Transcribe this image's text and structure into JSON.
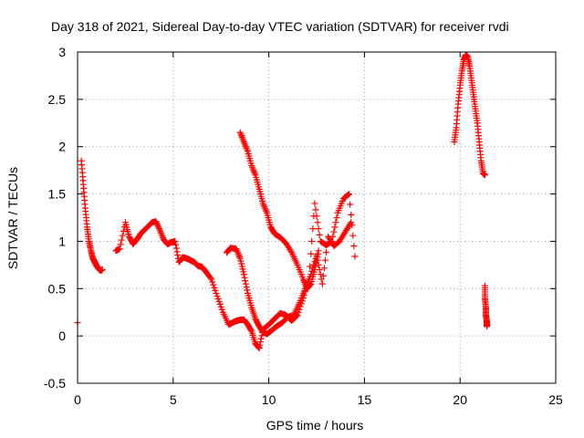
{
  "chart_data": {
    "type": "scatter",
    "title": "Day 318 of 2021, Sidereal Day-to-day VTEC variation (SDTVAR) for receiver rvdi",
    "xlabel": "GPS time / hours",
    "ylabel": "SDTVAR / TECUs",
    "xlim": [
      0,
      25
    ],
    "ylim": [
      -0.5,
      3
    ],
    "xticks": [
      0,
      5,
      10,
      15,
      20,
      25
    ],
    "yticks": [
      -0.5,
      0,
      0.5,
      1,
      1.5,
      2,
      2.5,
      3
    ],
    "xtick_labels": [
      "0",
      "5",
      "10",
      "15",
      "20",
      "25"
    ],
    "ytick_labels": [
      "-0.5",
      "0",
      "0.5",
      "1",
      "1.5",
      "2",
      "2.5",
      "3"
    ],
    "grid": true,
    "marker": "+",
    "color": "#ff0000",
    "series": [
      {
        "name": "seg-0",
        "x": [
          0.0
        ],
        "y": [
          0.14
        ]
      },
      {
        "name": "seg-1",
        "x": [
          0.2,
          0.3,
          0.4,
          0.5,
          0.6,
          0.7,
          0.8,
          0.9,
          1.0,
          1.1,
          1.2,
          1.3
        ],
        "y": [
          1.85,
          1.6,
          1.35,
          1.15,
          1.0,
          0.9,
          0.82,
          0.78,
          0.74,
          0.71,
          0.69,
          0.7
        ]
      },
      {
        "name": "seg-2",
        "x": [
          2.0,
          2.2,
          2.5,
          2.7,
          2.9,
          3.1,
          3.3,
          3.6,
          3.9,
          4.1,
          4.3,
          4.5,
          4.7,
          4.9,
          5.1,
          5.3,
          5.5,
          5.7,
          5.9,
          6.1,
          6.3,
          6.5,
          6.7,
          7.0,
          7.3,
          7.6,
          7.9,
          8.1,
          8.3,
          8.5,
          8.7,
          8.9,
          9.1,
          9.3,
          9.5,
          9.7,
          10.0,
          10.3,
          10.6,
          10.9,
          11.2,
          11.5,
          11.8,
          12.1,
          12.4,
          12.7,
          13.0,
          13.3,
          13.6,
          13.9,
          14.2,
          14.5
        ],
        "y": [
          0.9,
          0.92,
          1.2,
          1.05,
          0.97,
          1.02,
          1.08,
          1.14,
          1.2,
          1.21,
          1.12,
          1.02,
          0.97,
          0.99,
          1.0,
          0.78,
          0.83,
          0.82,
          0.8,
          0.78,
          0.74,
          0.73,
          0.68,
          0.6,
          0.42,
          0.25,
          0.12,
          0.14,
          0.16,
          0.17,
          0.17,
          0.12,
          0.05,
          -0.08,
          -0.13,
          0.07,
          0.12,
          0.18,
          0.24,
          0.22,
          0.16,
          0.22,
          0.4,
          0.6,
          1.4,
          1.0,
          0.96,
          1.0,
          1.3,
          1.45,
          1.5,
          0.84
        ]
      },
      {
        "name": "seg-3",
        "x": [
          7.8,
          8.0,
          8.3,
          8.5,
          8.7,
          8.9,
          9.1,
          9.3,
          9.5,
          9.7,
          9.9,
          10.1,
          10.4,
          10.7,
          11.0,
          11.3,
          11.6,
          11.9,
          12.2,
          12.5,
          12.8,
          13.1,
          13.4,
          13.7,
          14.0,
          14.3
        ],
        "y": [
          0.88,
          0.93,
          0.92,
          0.82,
          0.65,
          0.45,
          0.3,
          0.18,
          0.1,
          0.04,
          0.02,
          0.05,
          0.1,
          0.14,
          0.2,
          0.22,
          0.35,
          0.5,
          0.65,
          0.85,
          0.55,
          1.05,
          0.95,
          1.0,
          1.1,
          1.2
        ]
      },
      {
        "name": "seg-4",
        "x": [
          8.5,
          8.7,
          8.9,
          9.1,
          9.3,
          9.5,
          9.7,
          9.9,
          10.1,
          10.3,
          10.6,
          10.9,
          11.2,
          11.5,
          11.8,
          12.0,
          12.2,
          12.4,
          12.6
        ],
        "y": [
          2.15,
          2.05,
          1.95,
          1.8,
          1.7,
          1.55,
          1.4,
          1.3,
          1.15,
          1.08,
          1.04,
          0.98,
          0.88,
          0.75,
          0.6,
          0.5,
          0.55,
          0.7,
          0.9
        ]
      },
      {
        "name": "seg-5",
        "x": [
          19.7,
          19.8,
          19.9,
          20.0,
          20.1,
          20.2,
          20.3,
          20.4,
          20.5,
          20.6,
          20.7,
          20.8,
          20.9,
          21.0,
          21.1,
          21.2,
          21.3
        ],
        "y": [
          2.05,
          2.2,
          2.45,
          2.65,
          2.8,
          2.92,
          2.97,
          2.95,
          2.85,
          2.7,
          2.55,
          2.4,
          2.25,
          2.05,
          1.85,
          1.72,
          1.7
        ]
      },
      {
        "name": "seg-6",
        "x": [
          21.3,
          21.3,
          21.35,
          21.35,
          21.4,
          21.4
        ],
        "y": [
          0.53,
          0.4,
          0.3,
          0.22,
          0.15,
          0.1
        ]
      }
    ]
  }
}
